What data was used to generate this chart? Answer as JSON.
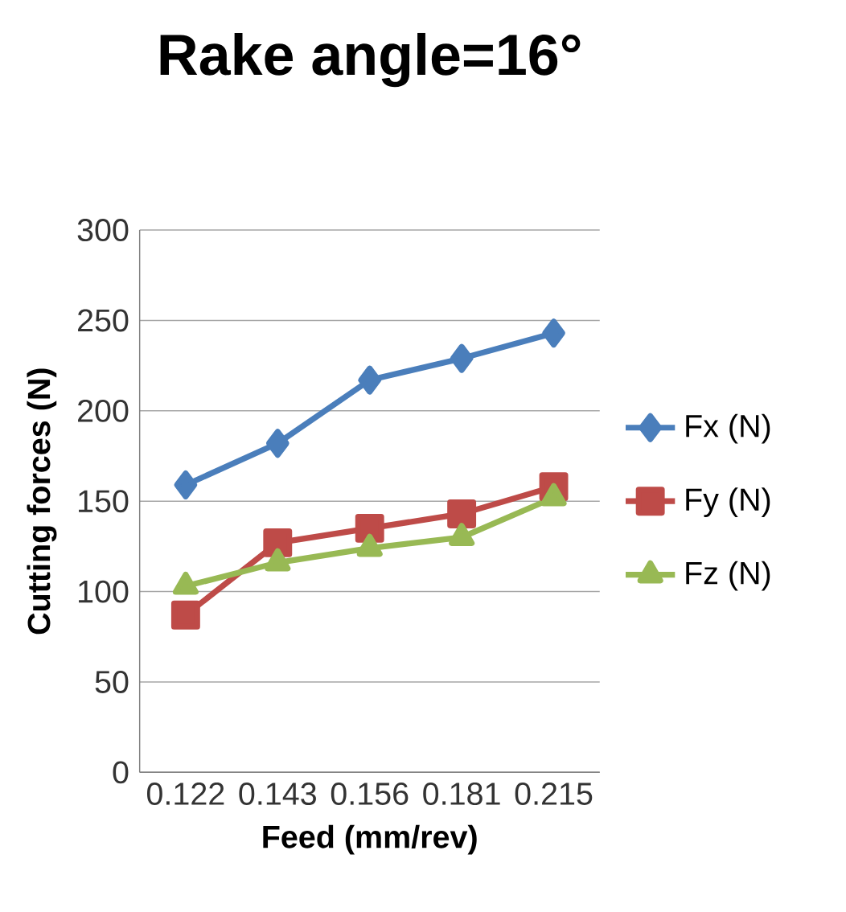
{
  "chart_data": {
    "type": "line",
    "title": "Rake angle=16°",
    "xlabel": "Feed (mm/rev)",
    "ylabel": "Cutting forces (N)",
    "categories": [
      "0.122",
      "0.143",
      "0.156",
      "0.181",
      "0.215"
    ],
    "series": [
      {
        "name": "Fx (N)",
        "color": "#4a7ebb",
        "marker": "diamond",
        "values": [
          159,
          182,
          217,
          229,
          243
        ]
      },
      {
        "name": "Fy (N)",
        "color": "#be4b48",
        "marker": "square",
        "values": [
          87,
          127,
          135,
          143,
          158
        ]
      },
      {
        "name": "Fz (N)",
        "color": "#98b954",
        "marker": "triangle",
        "values": [
          103,
          116,
          124,
          130,
          152
        ]
      }
    ],
    "ylim": [
      0,
      300
    ],
    "yticks": [
      0,
      50,
      100,
      150,
      200,
      250,
      300
    ],
    "grid": "y",
    "legend": "right"
  }
}
